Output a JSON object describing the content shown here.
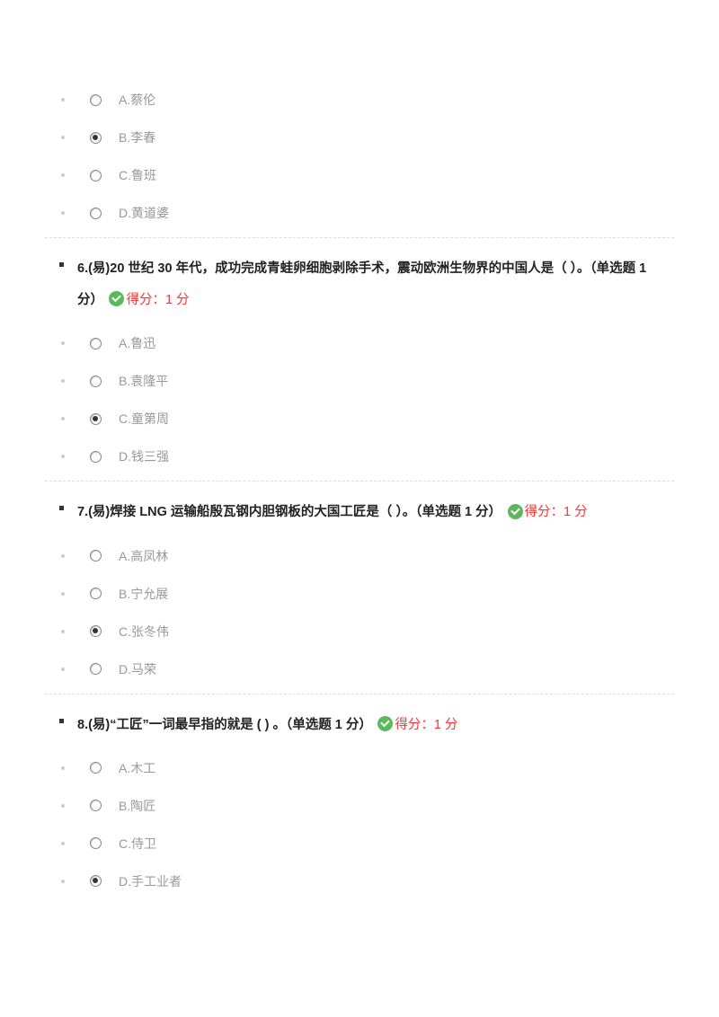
{
  "q5": {
    "options": [
      {
        "text": "A.蔡伦",
        "selected": false
      },
      {
        "text": "B.李春",
        "selected": true
      },
      {
        "text": "C.鲁班",
        "selected": false
      },
      {
        "text": "D.黄道婆",
        "selected": false
      }
    ]
  },
  "q6": {
    "text": "6.(易)20 世纪 30 年代，成功完成青蛙卵细胞剥除手术，震动欧洲生物界的中国人是（ ）。（单选题 1 分）",
    "score": "得分：1 分",
    "options": [
      {
        "text": "A.鲁迅",
        "selected": false
      },
      {
        "text": "B.袁隆平",
        "selected": false
      },
      {
        "text": "C.童第周",
        "selected": true
      },
      {
        "text": "D.钱三强",
        "selected": false
      }
    ]
  },
  "q7": {
    "text": "7.(易)焊接 LNG 运输船殷瓦钢内胆钢板的大国工匠是（ ）。（单选题 1 分）",
    "score": "得分：1 分",
    "options": [
      {
        "text": "A.高凤林",
        "selected": false
      },
      {
        "text": "B.宁允展",
        "selected": false
      },
      {
        "text": "C.张冬伟",
        "selected": true
      },
      {
        "text": "D.马荣",
        "selected": false
      }
    ]
  },
  "q8": {
    "text": "8.(易)“工匠”一词最早指的就是 ( ) 。（单选题 1 分）",
    "score": "得分：1 分",
    "options": [
      {
        "text": "A.木工",
        "selected": false
      },
      {
        "text": "B.陶匠",
        "selected": false
      },
      {
        "text": "C.侍卫",
        "selected": false
      },
      {
        "text": "D.手工业者",
        "selected": true
      }
    ]
  }
}
